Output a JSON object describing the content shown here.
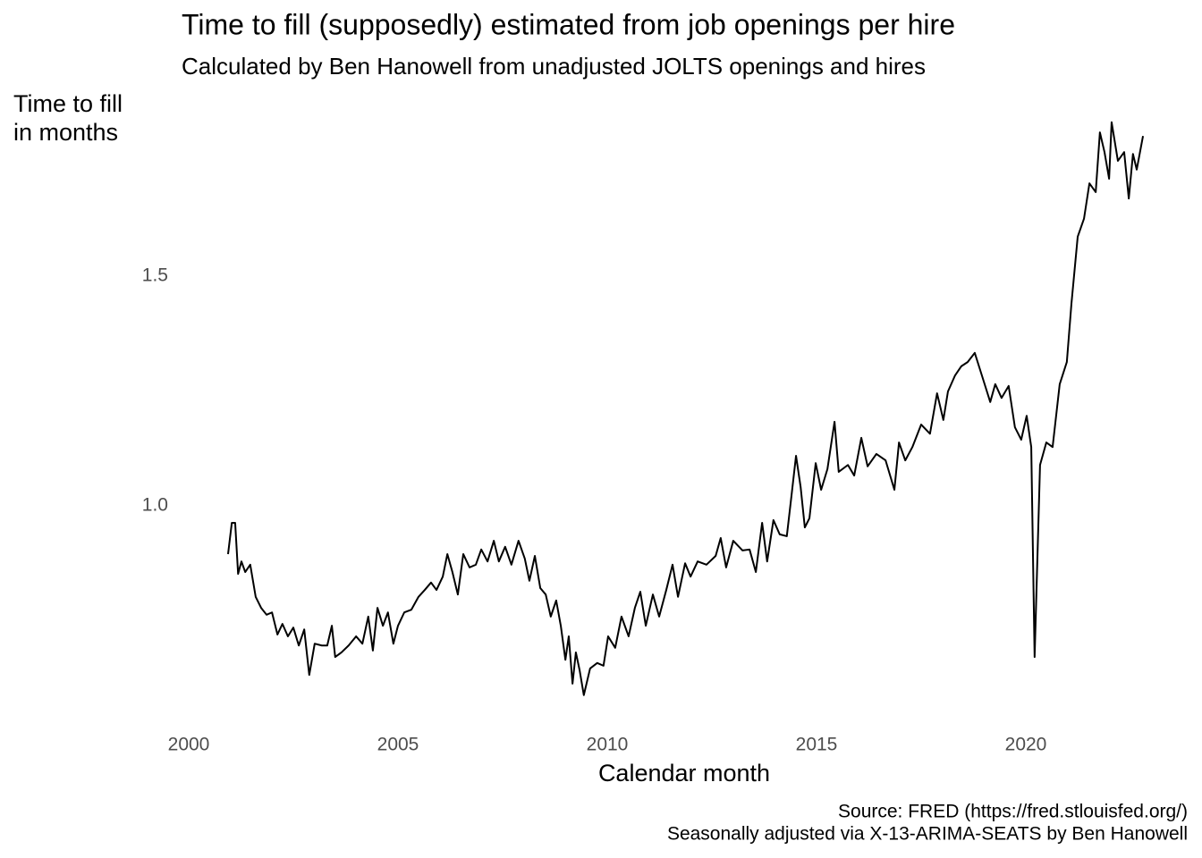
{
  "chart_data": {
    "type": "line",
    "title": "Time to fill (supposedly) estimated from job openings per hire",
    "subtitle": "Calculated by Ben Hanowell from unadjusted JOLTS openings and hires",
    "y_label": [
      "Time to fill",
      "in months"
    ],
    "x_label": "Calendar month",
    "caption": [
      "Source: FRED (https://fred.stlouisfed.org/)",
      "Seasonally adjusted via X-13-ARIMA-SEATS by Ben Hanowell"
    ],
    "xlim": [
      1999.5,
      2023.5
    ],
    "xticks": [
      2000,
      2005,
      2010,
      2015,
      2020
    ],
    "ylim": [
      0.55,
      1.87
    ],
    "yticks": [
      {
        "value": 1,
        "label": "1.0"
      },
      1.5
    ],
    "grid": false,
    "series": [
      {
        "color": "#000000",
        "x": [
          2000.94,
          2001.03,
          2001.11,
          2001.18,
          2001.26,
          2001.35,
          2001.47,
          2001.6,
          2001.73,
          2001.86,
          2001.99,
          2002.12,
          2002.24,
          2002.37,
          2002.5,
          2002.63,
          2002.76,
          2002.88,
          2003.01,
          2003.18,
          2003.31,
          2003.42,
          2003.5,
          2003.65,
          2003.82,
          2004.0,
          2004.15,
          2004.29,
          2004.4,
          2004.51,
          2004.64,
          2004.76,
          2004.89,
          2005.0,
          2005.15,
          2005.32,
          2005.49,
          2005.64,
          2005.79,
          2005.92,
          2006.07,
          2006.18,
          2006.3,
          2006.43,
          2006.56,
          2006.71,
          2006.86,
          2006.99,
          2007.14,
          2007.29,
          2007.41,
          2007.56,
          2007.71,
          2007.88,
          2008.03,
          2008.14,
          2008.27,
          2008.4,
          2008.53,
          2008.65,
          2008.78,
          2008.89,
          2009.0,
          2009.08,
          2009.17,
          2009.25,
          2009.34,
          2009.44,
          2009.59,
          2009.76,
          2009.91,
          2010.02,
          2010.19,
          2010.34,
          2010.51,
          2010.66,
          2010.79,
          2010.92,
          2011.09,
          2011.24,
          2011.41,
          2011.56,
          2011.69,
          2011.86,
          2011.99,
          2012.16,
          2012.37,
          2012.59,
          2012.71,
          2012.84,
          2013.01,
          2013.23,
          2013.4,
          2013.55,
          2013.7,
          2013.82,
          2013.97,
          2014.12,
          2014.29,
          2014.4,
          2014.51,
          2014.62,
          2014.72,
          2014.83,
          2014.98,
          2015.11,
          2015.26,
          2015.43,
          2015.53,
          2015.75,
          2015.9,
          2016.07,
          2016.22,
          2016.43,
          2016.65,
          2016.86,
          2016.97,
          2017.12,
          2017.29,
          2017.5,
          2017.71,
          2017.88,
          2018.03,
          2018.14,
          2018.31,
          2018.46,
          2018.61,
          2018.78,
          2018.95,
          2019.15,
          2019.27,
          2019.42,
          2019.59,
          2019.74,
          2019.89,
          2020.02,
          2020.13,
          2020.21,
          2020.34,
          2020.49,
          2020.64,
          2020.81,
          2020.98,
          2021.09,
          2021.24,
          2021.39,
          2021.52,
          2021.67,
          2021.77,
          2021.88,
          2021.99,
          2022.05,
          2022.2,
          2022.35,
          2022.46,
          2022.56,
          2022.65,
          2022.8
        ],
        "values": [
          0.895,
          0.963,
          0.963,
          0.852,
          0.879,
          0.856,
          0.872,
          0.802,
          0.778,
          0.763,
          0.768,
          0.72,
          0.743,
          0.716,
          0.735,
          0.696,
          0.731,
          0.632,
          0.7,
          0.696,
          0.696,
          0.739,
          0.671,
          0.681,
          0.696,
          0.716,
          0.7,
          0.759,
          0.685,
          0.778,
          0.739,
          0.768,
          0.7,
          0.739,
          0.768,
          0.774,
          0.802,
          0.817,
          0.833,
          0.817,
          0.846,
          0.895,
          0.856,
          0.807,
          0.895,
          0.866,
          0.872,
          0.905,
          0.879,
          0.924,
          0.879,
          0.911,
          0.872,
          0.924,
          0.885,
          0.837,
          0.891,
          0.821,
          0.807,
          0.759,
          0.794,
          0.739,
          0.665,
          0.716,
          0.613,
          0.681,
          0.642,
          0.588,
          0.646,
          0.658,
          0.652,
          0.716,
          0.691,
          0.759,
          0.716,
          0.778,
          0.813,
          0.739,
          0.807,
          0.759,
          0.817,
          0.872,
          0.802,
          0.875,
          0.846,
          0.879,
          0.872,
          0.891,
          0.93,
          0.866,
          0.924,
          0.903,
          0.905,
          0.856,
          0.963,
          0.879,
          0.969,
          0.938,
          0.934,
          1.021,
          1.109,
          1.041,
          0.953,
          0.973,
          1.093,
          1.035,
          1.08,
          1.183,
          1.074,
          1.089,
          1.066,
          1.148,
          1.086,
          1.113,
          1.099,
          1.035,
          1.138,
          1.099,
          1.128,
          1.177,
          1.157,
          1.245,
          1.187,
          1.249,
          1.284,
          1.304,
          1.313,
          1.333,
          1.284,
          1.226,
          1.265,
          1.235,
          1.261,
          1.171,
          1.144,
          1.196,
          1.128,
          0.671,
          1.089,
          1.138,
          1.128,
          1.265,
          1.313,
          1.44,
          1.586,
          1.625,
          1.702,
          1.683,
          1.813,
          1.77,
          1.712,
          1.835,
          1.751,
          1.77,
          1.669,
          1.766,
          1.732,
          1.805
        ]
      }
    ]
  }
}
